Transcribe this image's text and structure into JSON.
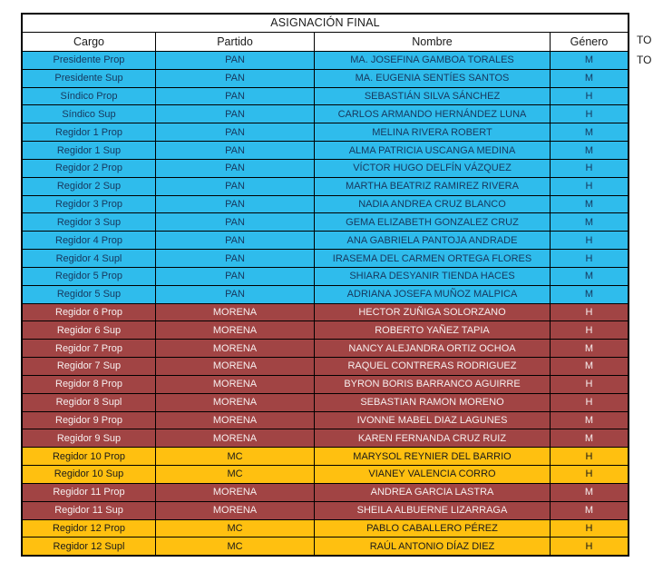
{
  "table": {
    "title": "ASIGNACIÓN FINAL",
    "columns": [
      "Cargo",
      "Partido",
      "Nombre",
      "Género"
    ],
    "rows": [
      {
        "cargo": "Presidente Prop",
        "partido": "PAN",
        "nombre": "MA. JOSEFINA GAMBOA TORALES",
        "genero": "M"
      },
      {
        "cargo": "Presidente Sup",
        "partido": "PAN",
        "nombre": "MA. EUGENIA SENTÍES SANTOS",
        "genero": "M"
      },
      {
        "cargo": "Síndico Prop",
        "partido": "PAN",
        "nombre": "SEBASTIÁN SILVA SÁNCHEZ",
        "genero": "H"
      },
      {
        "cargo": "Síndico Sup",
        "partido": "PAN",
        "nombre": "CARLOS ARMANDO HERNÁNDEZ LUNA",
        "genero": "H"
      },
      {
        "cargo": "Regidor 1 Prop",
        "partido": "PAN",
        "nombre": "MELINA RIVERA ROBERT",
        "genero": "M"
      },
      {
        "cargo": "Regidor 1 Sup",
        "partido": "PAN",
        "nombre": "ALMA PATRICIA USCANGA MEDINA",
        "genero": "M"
      },
      {
        "cargo": "Regidor 2 Prop",
        "partido": "PAN",
        "nombre": "VÍCTOR HUGO DELFÍN VÁZQUEZ",
        "genero": "H"
      },
      {
        "cargo": "Regidor 2 Sup",
        "partido": "PAN",
        "nombre": "MARTHA BEATRIZ RAMIREZ RIVERA",
        "genero": "H"
      },
      {
        "cargo": "Regidor 3 Prop",
        "partido": "PAN",
        "nombre": "NADIA ANDREA CRUZ BLANCO",
        "genero": "M"
      },
      {
        "cargo": "Regidor 3 Sup",
        "partido": "PAN",
        "nombre": "GEMA ELIZABETH GONZALEZ CRUZ",
        "genero": "M"
      },
      {
        "cargo": "Regidor 4 Prop",
        "partido": "PAN",
        "nombre": "ANA GABRIELA PANTOJA ANDRADE",
        "genero": "H"
      },
      {
        "cargo": "Regidor 4 Supl",
        "partido": "PAN",
        "nombre": "IRASEMA DEL CARMEN ORTEGA FLORES",
        "genero": "H"
      },
      {
        "cargo": "Regidor 5 Prop",
        "partido": "PAN",
        "nombre": "SHIARA DESYANIR TIENDA HACES",
        "genero": "M"
      },
      {
        "cargo": "Regidor 5 Sup",
        "partido": "PAN",
        "nombre": "ADRIANA JOSEFA MUÑOZ MALPICA",
        "genero": "M"
      },
      {
        "cargo": "Regidor 6 Prop",
        "partido": "MORENA",
        "nombre": "HECTOR ZUÑIGA SOLORZANO",
        "genero": "H"
      },
      {
        "cargo": "Regidor 6 Sup",
        "partido": "MORENA",
        "nombre": "ROBERTO YAÑEZ TAPIA",
        "genero": "H"
      },
      {
        "cargo": "Regidor 7 Prop",
        "partido": "MORENA",
        "nombre": "NANCY ALEJANDRA ORTIZ OCHOA",
        "genero": "M"
      },
      {
        "cargo": "Regidor 7 Sup",
        "partido": "MORENA",
        "nombre": "RAQUEL CONTRERAS RODRIGUEZ",
        "genero": "M"
      },
      {
        "cargo": "Regidor 8 Prop",
        "partido": "MORENA",
        "nombre": "BYRON BORIS BARRANCO AGUIRRE",
        "genero": "H"
      },
      {
        "cargo": "Regidor 8 Supl",
        "partido": "MORENA",
        "nombre": "SEBASTIAN RAMON MORENO",
        "genero": "H"
      },
      {
        "cargo": "Regidor 9 Prop",
        "partido": "MORENA",
        "nombre": "IVONNE MABEL DIAZ LAGUNES",
        "genero": "M"
      },
      {
        "cargo": "Regidor 9 Sup",
        "partido": "MORENA",
        "nombre": "KAREN FERNANDA CRUZ RUIZ",
        "genero": "M"
      },
      {
        "cargo": "Regidor 10 Prop",
        "partido": "MC",
        "nombre": "MARYSOL REYNIER DEL BARRIO",
        "genero": "H"
      },
      {
        "cargo": "Regidor 10 Sup",
        "partido": "MC",
        "nombre": "VIANEY VALENCIA CORRO",
        "genero": "H"
      },
      {
        "cargo": "Regidor 11 Prop",
        "partido": "MORENA",
        "nombre": "ANDREA GARCIA LASTRA",
        "genero": "M"
      },
      {
        "cargo": "Regidor 11 Sup",
        "partido": "MORENA",
        "nombre": "SHEILA ALBUERNE LIZARRAGA",
        "genero": "M"
      },
      {
        "cargo": "Regidor 12 Prop",
        "partido": "MC",
        "nombre": "PABLO CABALLERO PÉREZ",
        "genero": "H"
      },
      {
        "cargo": "Regidor 12 Supl",
        "partido": "MC",
        "nombre": "RAÚL ANTONIO DÍAZ DIEZ",
        "genero": "H"
      }
    ]
  },
  "parties": {
    "PAN": {
      "bg": "#2FBCEC",
      "text": "#17375D"
    },
    "MORENA": {
      "bg": "#A14444",
      "text": "#F7EFEF"
    },
    "MC": {
      "bg": "#FFC010",
      "text": "#1A1A1A"
    }
  },
  "clipped_side_text": [
    "TO",
    "TO"
  ]
}
